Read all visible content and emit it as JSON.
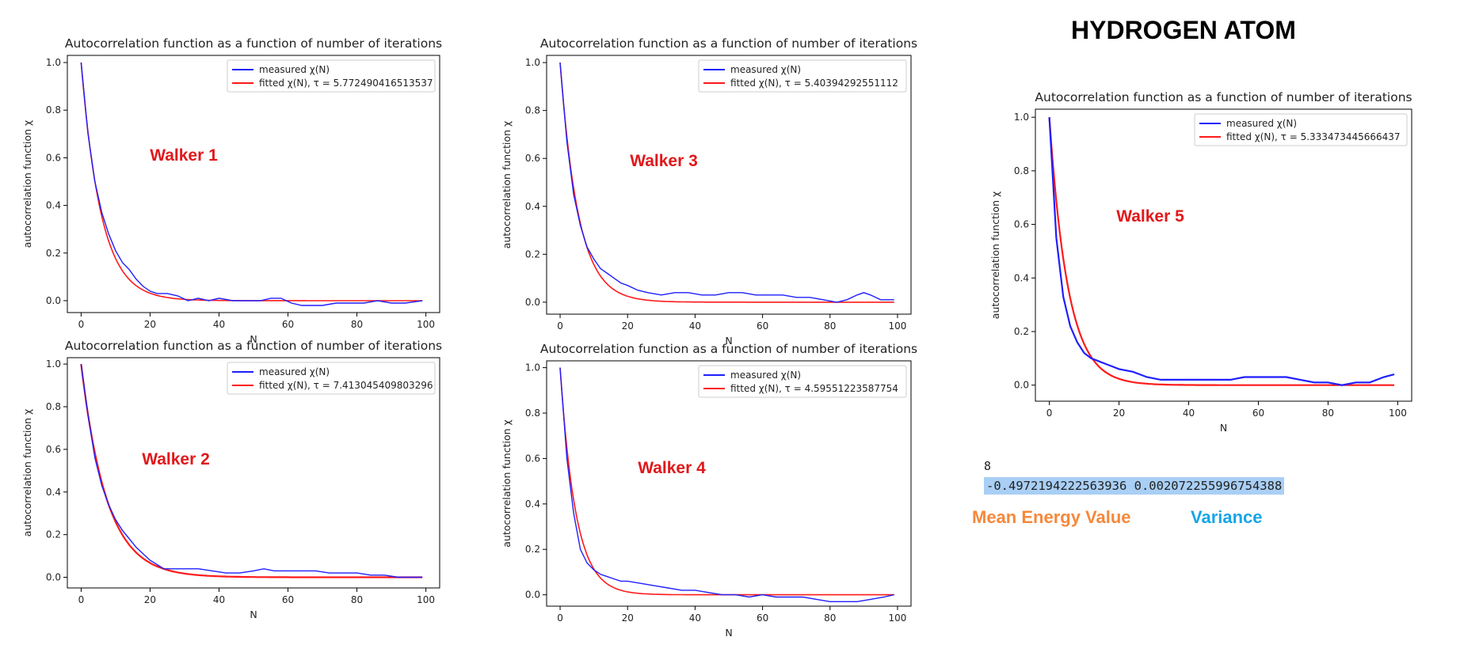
{
  "heading": "HYDROGEN ATOM",
  "output": {
    "index": "8",
    "line": "-0.4972194222563936 0.002072255996754388",
    "mean_caption": "Mean Energy Value",
    "variance_caption": "Variance"
  },
  "colors": {
    "measured": "#1f1fff",
    "fitted": "#ff1a1a",
    "walker_label": "#e0181b",
    "mean_caption": "#f6883a",
    "variance_caption": "#16a5e8"
  },
  "chart_data": [
    {
      "id": "walker1",
      "type": "line",
      "title": "Autocorrelation function as a function of number of iterations",
      "xlabel": "N",
      "ylabel": "autocorrelation function χ",
      "annotation": "Walker 1",
      "xlim": [
        -4,
        104
      ],
      "ylim": [
        -0.05,
        1.03
      ],
      "xticks": [
        0,
        20,
        40,
        60,
        80,
        100
      ],
      "yticks": [
        0.0,
        0.2,
        0.4,
        0.6,
        0.8,
        1.0
      ],
      "legend_position": "top-right",
      "series": [
        {
          "name": "measured χ(N)",
          "color": "#1f1fff",
          "x": [
            0,
            2,
            4,
            6,
            8,
            10,
            12,
            14,
            16,
            18,
            20,
            22,
            25,
            28,
            31,
            34,
            37,
            40,
            44,
            48,
            52,
            55,
            58,
            61,
            64,
            67,
            70,
            74,
            78,
            82,
            86,
            90,
            94,
            99
          ],
          "y": [
            1.0,
            0.7,
            0.5,
            0.37,
            0.28,
            0.21,
            0.16,
            0.13,
            0.09,
            0.06,
            0.04,
            0.03,
            0.03,
            0.02,
            0.0,
            0.01,
            0.0,
            0.01,
            0.0,
            0.0,
            0.0,
            0.01,
            0.01,
            -0.01,
            -0.02,
            -0.02,
            -0.02,
            -0.01,
            -0.01,
            -0.01,
            0.0,
            -0.01,
            -0.01,
            0.0
          ]
        },
        {
          "name": "fitted χ(N), τ = 5.772490416513537",
          "color": "#ff1a1a",
          "tau": 5.772490416513537
        }
      ]
    },
    {
      "id": "walker2",
      "type": "line",
      "title": "Autocorrelation function as a function of number of iterations",
      "xlabel": "N",
      "ylabel": "autocorrelation function χ",
      "annotation": "Walker 2",
      "xlim": [
        -4,
        104
      ],
      "ylim": [
        -0.05,
        1.03
      ],
      "xticks": [
        0,
        20,
        40,
        60,
        80,
        100
      ],
      "yticks": [
        0.0,
        0.2,
        0.4,
        0.6,
        0.8,
        1.0
      ],
      "legend_position": "top-right",
      "series": [
        {
          "name": "measured χ(N)",
          "color": "#1f1fff",
          "x": [
            0,
            2,
            4,
            6,
            8,
            10,
            12,
            14,
            16,
            18,
            20,
            22,
            24,
            27,
            30,
            34,
            38,
            42,
            46,
            50,
            53,
            56,
            60,
            64,
            68,
            72,
            76,
            80,
            84,
            88,
            92,
            96,
            99
          ],
          "y": [
            1.0,
            0.76,
            0.56,
            0.43,
            0.34,
            0.27,
            0.22,
            0.18,
            0.14,
            0.11,
            0.08,
            0.06,
            0.04,
            0.04,
            0.04,
            0.04,
            0.03,
            0.02,
            0.02,
            0.03,
            0.04,
            0.03,
            0.03,
            0.03,
            0.03,
            0.02,
            0.02,
            0.02,
            0.01,
            0.01,
            0.0,
            0.0,
            0.0
          ]
        },
        {
          "name": "fitted χ(N), τ = 7.413045409803296",
          "color": "#ff1a1a",
          "tau": 7.413045409803296
        }
      ]
    },
    {
      "id": "walker3",
      "type": "line",
      "title": "Autocorrelation function as a function of number of iterations",
      "xlabel": "N",
      "ylabel": "autocorrelation function χ",
      "annotation": "Walker 3",
      "xlim": [
        -4,
        104
      ],
      "ylim": [
        -0.05,
        1.03
      ],
      "xticks": [
        0,
        20,
        40,
        60,
        80,
        100
      ],
      "yticks": [
        0.0,
        0.2,
        0.4,
        0.6,
        0.8,
        1.0
      ],
      "legend_position": "top-right",
      "series": [
        {
          "name": "measured χ(N)",
          "color": "#1f1fff",
          "x": [
            0,
            2,
            4,
            6,
            8,
            10,
            12,
            14,
            16,
            18,
            20,
            23,
            26,
            30,
            34,
            38,
            42,
            46,
            50,
            54,
            58,
            62,
            66,
            70,
            74,
            78,
            82,
            85,
            88,
            90,
            92,
            95,
            99
          ],
          "y": [
            1.0,
            0.67,
            0.45,
            0.32,
            0.23,
            0.18,
            0.14,
            0.12,
            0.1,
            0.08,
            0.07,
            0.05,
            0.04,
            0.03,
            0.04,
            0.04,
            0.03,
            0.03,
            0.04,
            0.04,
            0.03,
            0.03,
            0.03,
            0.02,
            0.02,
            0.01,
            0.0,
            0.01,
            0.03,
            0.04,
            0.03,
            0.01,
            0.01
          ]
        },
        {
          "name": "fitted χ(N), τ = 5.40394292551112",
          "color": "#ff1a1a",
          "tau": 5.40394292551112
        }
      ]
    },
    {
      "id": "walker4",
      "type": "line",
      "title": "Autocorrelation function as a function of number of iterations",
      "xlabel": "N",
      "ylabel": "autocorrelation function χ",
      "annotation": "Walker 4",
      "xlim": [
        -4,
        104
      ],
      "ylim": [
        -0.05,
        1.03
      ],
      "xticks": [
        0,
        20,
        40,
        60,
        80,
        100
      ],
      "yticks": [
        0.0,
        0.2,
        0.4,
        0.6,
        0.8,
        1.0
      ],
      "legend_position": "top-right",
      "series": [
        {
          "name": "measured χ(N)",
          "color": "#1f1fff",
          "x": [
            0,
            2,
            4,
            6,
            8,
            10,
            12,
            14,
            16,
            18,
            20,
            24,
            28,
            32,
            36,
            40,
            44,
            48,
            52,
            56,
            60,
            64,
            68,
            72,
            76,
            80,
            84,
            88,
            92,
            96,
            99
          ],
          "y": [
            1.0,
            0.6,
            0.36,
            0.2,
            0.14,
            0.11,
            0.09,
            0.08,
            0.07,
            0.06,
            0.06,
            0.05,
            0.04,
            0.03,
            0.02,
            0.02,
            0.01,
            0.0,
            0.0,
            -0.01,
            0.0,
            -0.01,
            -0.01,
            -0.01,
            -0.02,
            -0.03,
            -0.03,
            -0.03,
            -0.02,
            -0.01,
            0.0
          ]
        },
        {
          "name": "fitted χ(N), τ = 4.59551223587754",
          "color": "#ff1a1a",
          "tau": 4.59551223587754
        }
      ]
    },
    {
      "id": "walker5",
      "type": "line",
      "title": "Autocorrelation function as a function of number of iterations",
      "xlabel": "N",
      "ylabel": "autocorrelation function χ",
      "annotation": "Walker 5",
      "xlim": [
        -4,
        104
      ],
      "ylim": [
        -0.06,
        1.03
      ],
      "xticks": [
        0,
        20,
        40,
        60,
        80,
        100
      ],
      "yticks": [
        0.0,
        0.2,
        0.4,
        0.6,
        0.8,
        1.0
      ],
      "legend_position": "top-right",
      "series": [
        {
          "name": "measured χ(N)",
          "color": "#1f1fff",
          "x": [
            0,
            2,
            4,
            6,
            8,
            10,
            12,
            14,
            16,
            18,
            20,
            24,
            28,
            32,
            36,
            40,
            44,
            48,
            52,
            56,
            60,
            64,
            68,
            72,
            76,
            80,
            84,
            88,
            92,
            96,
            99
          ],
          "y": [
            1.0,
            0.55,
            0.33,
            0.22,
            0.16,
            0.12,
            0.1,
            0.09,
            0.08,
            0.07,
            0.06,
            0.05,
            0.03,
            0.02,
            0.02,
            0.02,
            0.02,
            0.02,
            0.02,
            0.03,
            0.03,
            0.03,
            0.03,
            0.02,
            0.01,
            0.01,
            0.0,
            0.01,
            0.01,
            0.03,
            0.04
          ]
        },
        {
          "name": "fitted χ(N), τ = 5.333473445666437",
          "color": "#ff1a1a",
          "tau": 5.333473445666437
        }
      ]
    }
  ]
}
